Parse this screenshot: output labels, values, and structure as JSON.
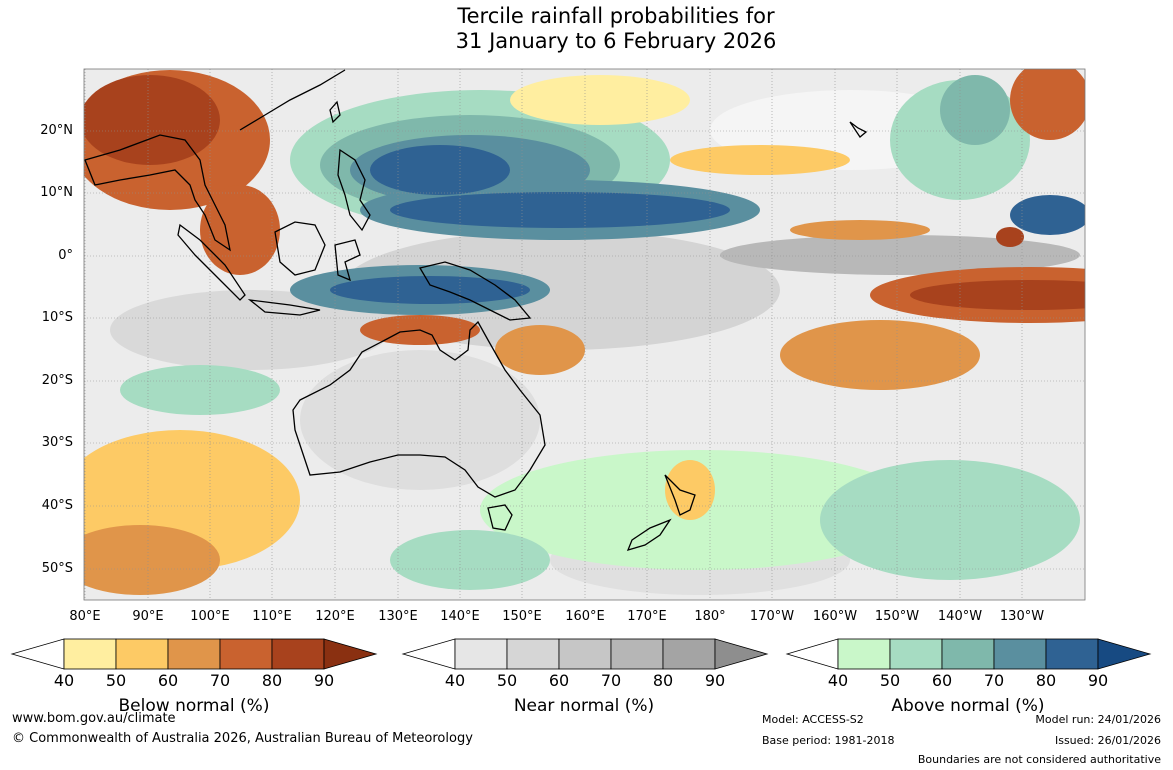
{
  "title": {
    "line1": "Tercile rainfall probabilities for",
    "line2": "31 January to 6 February 2026"
  },
  "map": {
    "lat_labels": [
      "20°N",
      "10°N",
      "0°",
      "10°S",
      "20°S",
      "30°S",
      "40°S",
      "50°S"
    ],
    "lon_labels": [
      "80°E",
      "90°E",
      "100°E",
      "110°E",
      "120°E",
      "130°E",
      "140°E",
      "150°E",
      "160°E",
      "170°E",
      "180°",
      "170°W",
      "160°W",
      "150°W",
      "140°W",
      "130°W"
    ]
  },
  "legends": {
    "ticks": [
      "40",
      "50",
      "60",
      "70",
      "80",
      "90"
    ],
    "below": {
      "label": "Below normal (%)",
      "colors": [
        "#ffeea0",
        "#fdca65",
        "#e0954a",
        "#c9622f",
        "#a8421d",
        "#8a3011"
      ]
    },
    "near": {
      "label": "Near normal (%)",
      "colors": [
        "#e6e6e6",
        "#d6d6d6",
        "#c6c6c6",
        "#b6b6b6",
        "#a4a4a4",
        "#8e8e8e"
      ]
    },
    "above": {
      "label": "Above normal (%)",
      "colors": [
        "#c9f7c9",
        "#a6dcc2",
        "#7fb8ab",
        "#5a8f9f",
        "#2f6293",
        "#174a82"
      ]
    }
  },
  "footer": {
    "url": "www.bom.gov.au/climate",
    "copyright": "© Commonwealth of Australia 2026, Australian Bureau of Meteorology",
    "model": "Model: ACCESS-S2",
    "base_period": "Base period: 1981-2018",
    "model_run": "Model run: 24/01/2026",
    "issued": "Issued: 26/01/2026",
    "boundaries": "Boundaries are not considered authoritative"
  }
}
